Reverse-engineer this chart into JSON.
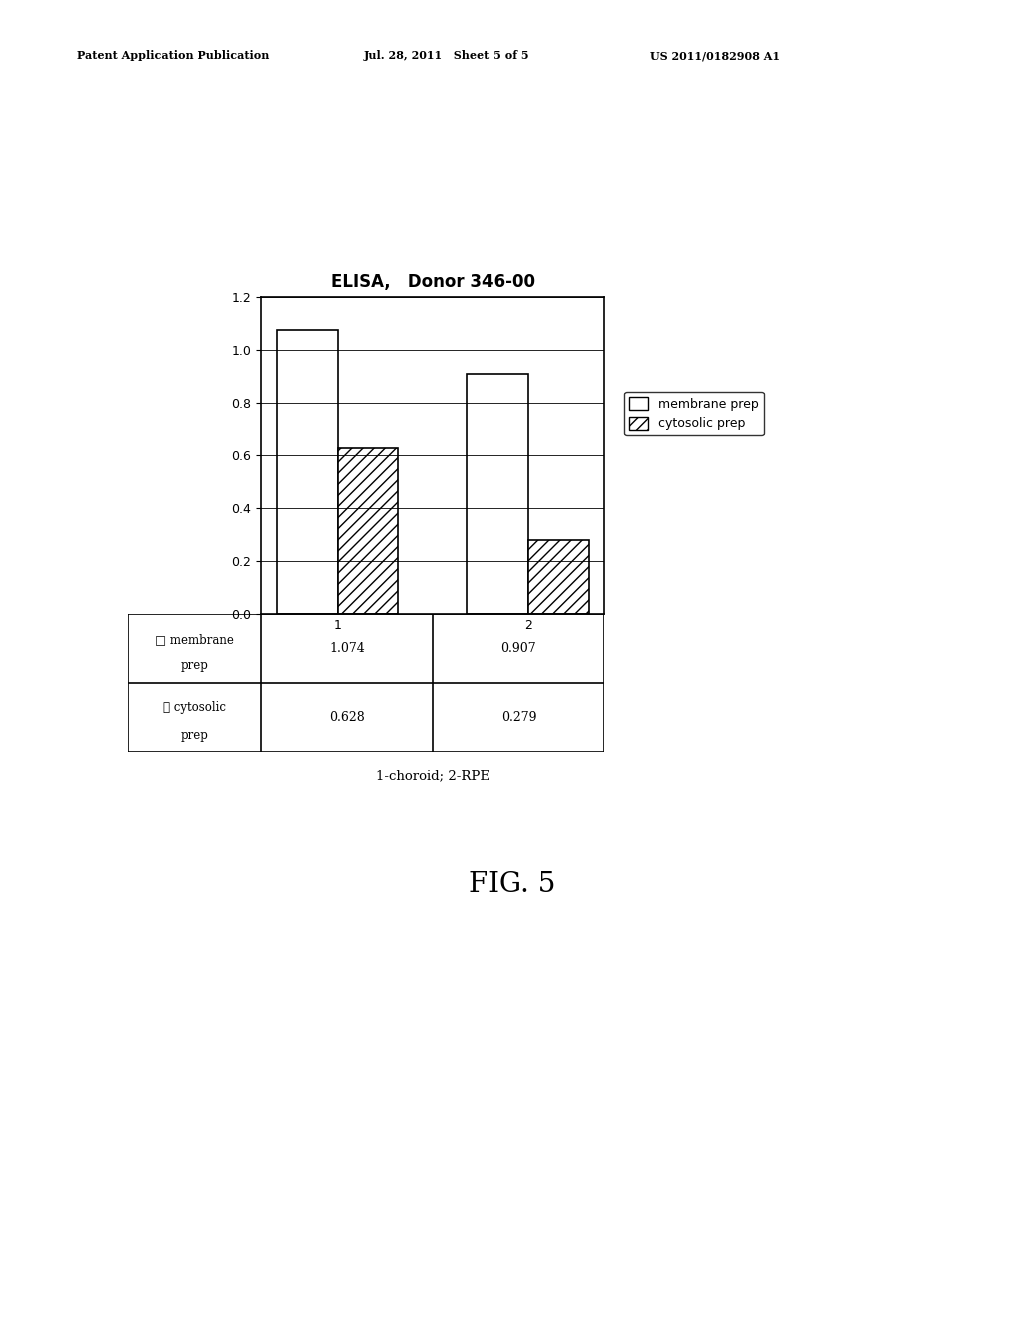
{
  "title": "ELISA,   Donor 346-00",
  "categories": [
    "1",
    "2"
  ],
  "membrane_values": [
    1.074,
    0.907
  ],
  "cytosolic_values": [
    0.628,
    0.279
  ],
  "membrane_label": "membrane prep",
  "cytosolic_label": "cytosolic prep",
  "membrane_color": "white",
  "cytosolic_hatch": "///",
  "ylim": [
    0,
    1.2
  ],
  "yticks": [
    0,
    0.2,
    0.4,
    0.6,
    0.8,
    1.0,
    1.2
  ],
  "xlabel": "1-choroid; 2-RPE",
  "header_text": "Patent Application Publication",
  "header_date": "Jul. 28, 2011   Sheet 5 of 5",
  "header_patent": "US 2011/0182908 A1",
  "fig_label": "FIG. 5",
  "table_row0": [
    "membrane prep",
    "1.074",
    "0.907"
  ],
  "table_row1": [
    "cytosolic prep",
    "0.628",
    "0.279"
  ],
  "bar_width": 0.32,
  "bar_edge_color": "black",
  "background_color": "white",
  "title_fontsize": 12,
  "axis_fontsize": 9,
  "legend_fontsize": 9,
  "header_fontsize": 8
}
